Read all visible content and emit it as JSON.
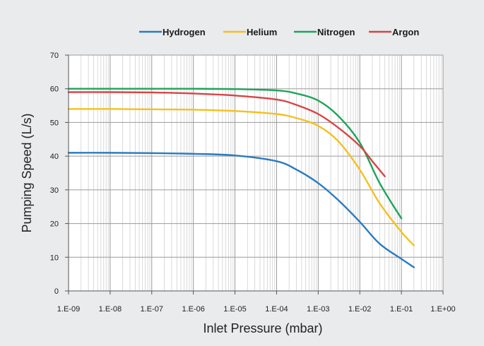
{
  "chart_data": {
    "type": "line",
    "title": "",
    "xlabel": "Inlet Pressure (mbar)",
    "ylabel": "Pumping Speed (L/s)",
    "xscale": "log",
    "xlim": [
      1e-09,
      1
    ],
    "ylim": [
      0,
      70
    ],
    "grid": true,
    "legend": "top",
    "x_tick_labels": [
      "1.E-09",
      "1.E-08",
      "1.E-07",
      "1.E-06",
      "1.E-05",
      "1.E-04",
      "1.E-03",
      "1.E-02",
      "1.E-01",
      "1.E+00"
    ],
    "y_tick_labels": [
      "0",
      "10",
      "20",
      "30",
      "40",
      "50",
      "60",
      "70"
    ],
    "series": [
      {
        "name": "Hydrogen",
        "color": "#2a7bbf",
        "x": [
          1e-09,
          1e-08,
          1e-07,
          1e-06,
          1e-05,
          0.0001,
          0.0003,
          0.001,
          0.003,
          0.01,
          0.03,
          0.1,
          0.2
        ],
        "y": [
          41,
          41,
          40.9,
          40.7,
          40.2,
          38.5,
          36,
          32,
          27,
          20.5,
          14,
          9.5,
          7
        ]
      },
      {
        "name": "Helium",
        "color": "#f4c01e",
        "x": [
          1e-09,
          1e-08,
          1e-07,
          1e-06,
          1e-05,
          0.0001,
          0.0003,
          0.001,
          0.003,
          0.01,
          0.03,
          0.1,
          0.2
        ],
        "y": [
          54,
          54,
          53.9,
          53.8,
          53.4,
          52.5,
          51.3,
          49,
          44.5,
          36,
          26,
          17.5,
          13.5
        ]
      },
      {
        "name": "Nitrogen",
        "color": "#1fa35a",
        "x": [
          1e-09,
          1e-08,
          1e-07,
          1e-06,
          1e-05,
          0.0001,
          0.0003,
          0.001,
          0.003,
          0.01,
          0.03,
          0.1
        ],
        "y": [
          60,
          60,
          60,
          60,
          59.9,
          59.5,
          58.6,
          56.5,
          52,
          44,
          32,
          21.5
        ]
      },
      {
        "name": "Argon",
        "color": "#d64545",
        "x": [
          1e-09,
          1e-08,
          1e-07,
          1e-06,
          1e-05,
          0.0001,
          0.0003,
          0.001,
          0.003,
          0.01,
          0.02,
          0.04
        ],
        "y": [
          59,
          59,
          58.9,
          58.6,
          58,
          56.8,
          55.2,
          52.5,
          48.5,
          43,
          38.5,
          34
        ]
      }
    ]
  }
}
